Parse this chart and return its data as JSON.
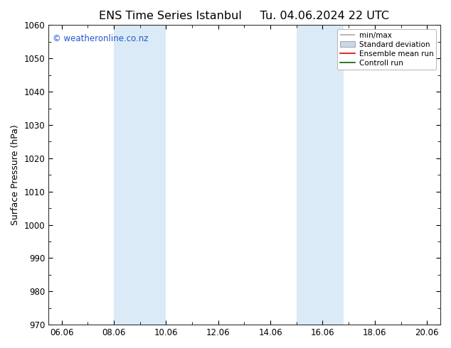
{
  "title_left": "ENS Time Series Istanbul",
  "title_right": "Tu. 04.06.2024 22 UTC",
  "ylabel": "Surface Pressure (hPa)",
  "xlim": [
    5.5,
    20.5
  ],
  "ylim": [
    970,
    1060
  ],
  "yticks": [
    970,
    980,
    990,
    1000,
    1010,
    1020,
    1030,
    1040,
    1050,
    1060
  ],
  "xtick_labels": [
    "06.06",
    "08.06",
    "10.06",
    "12.06",
    "14.06",
    "16.06",
    "18.06",
    "20.06"
  ],
  "xtick_positions": [
    6.0,
    8.0,
    10.0,
    12.0,
    14.0,
    16.0,
    18.0,
    20.0
  ],
  "shaded_bands": [
    {
      "x_start": 8.0,
      "x_end": 10.0
    },
    {
      "x_start": 15.0,
      "x_end": 16.8
    }
  ],
  "shade_color": "#daeaf7",
  "bg_color": "#ffffff",
  "watermark_text": "© weatheronline.co.nz",
  "watermark_color": "#2255cc",
  "legend_items": [
    {
      "label": "min/max",
      "color": "#aaaaaa",
      "lw": 1.2
    },
    {
      "label": "Standard deviation",
      "color": "#c8d8e8",
      "lw": 6
    },
    {
      "label": "Ensemble mean run",
      "color": "#dd0000",
      "lw": 1.2
    },
    {
      "label": "Controll run",
      "color": "#006600",
      "lw": 1.2
    }
  ],
  "title_fontsize": 11.5,
  "axis_label_fontsize": 9,
  "tick_fontsize": 8.5,
  "watermark_fontsize": 8.5,
  "legend_fontsize": 7.5
}
